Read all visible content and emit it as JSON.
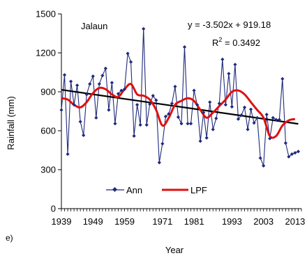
{
  "chart_data": {
    "type": "line",
    "title": "",
    "station_label": "Jalaun",
    "panel_label": "e)",
    "xlabel": "Year",
    "ylabel": "Rainfall (mm)",
    "ylim": [
      0,
      1500
    ],
    "xlim": [
      1939,
      2015
    ],
    "y_ticks": [
      0,
      300,
      600,
      900,
      1200,
      1500
    ],
    "x_tick_labels": [
      1939,
      1949,
      1959,
      1971,
      1981,
      1993,
      2003,
      2013
    ],
    "legend": {
      "placement": "bottom-center",
      "entries": [
        "Ann",
        "LPF"
      ]
    },
    "equation": "y = -3.502x + 919.18",
    "r_squared_prefix": "R",
    "r_squared_exp": "2",
    "r_squared_value": " = 0.3492",
    "colors": {
      "ann": "#1f2a7a",
      "lpf": "#e01010",
      "trend": "#000000"
    },
    "series": [
      {
        "name": "Ann",
        "x": [
          1939,
          1940,
          1941,
          1942,
          1943,
          1944,
          1945,
          1946,
          1947,
          1948,
          1949,
          1950,
          1951,
          1952,
          1953,
          1954,
          1955,
          1956,
          1957,
          1958,
          1959,
          1960,
          1961,
          1962,
          1963,
          1964,
          1965,
          1966,
          1967,
          1968,
          1969,
          1970,
          1971,
          1972,
          1973,
          1974,
          1975,
          1976,
          1977,
          1978,
          1979,
          1980,
          1981,
          1982,
          1983,
          1984,
          1985,
          1986,
          1987,
          1988,
          1989,
          1990,
          1991,
          1992,
          1993,
          1994,
          1995,
          1996,
          1997,
          1998,
          1999,
          2000,
          2001,
          2002,
          2003,
          2004,
          2005,
          2006,
          2007,
          2008,
          2009,
          2010,
          2011,
          2012,
          2013,
          2014
        ],
        "values": [
          760,
          1030,
          420,
          980,
          800,
          950,
          670,
          565,
          880,
          960,
          1020,
          700,
          960,
          1025,
          1080,
          760,
          970,
          655,
          885,
          910,
          920,
          1195,
          1130,
          560,
          800,
          645,
          1385,
          645,
          805,
          870,
          835,
          355,
          500,
          710,
          730,
          810,
          940,
          705,
          655,
          1245,
          655,
          655,
          910,
          800,
          520,
          740,
          545,
          820,
          610,
          695,
          810,
          1150,
          800,
          1040,
          785,
          1110,
          690,
          720,
          780,
          610,
          765,
          660,
          700,
          390,
          330,
          725,
          540,
          700,
          685,
          685,
          1000,
          505,
          400,
          420,
          430,
          440
        ],
        "marker": "diamond"
      },
      {
        "name": "LPF",
        "x": [
          1939,
          1941,
          1943,
          1945,
          1947,
          1949,
          1951,
          1953,
          1955,
          1957,
          1959,
          1961,
          1963,
          1965,
          1967,
          1969,
          1971,
          1973,
          1975,
          1977,
          1979,
          1981,
          1983,
          1985,
          1987,
          1989,
          1991,
          1993,
          1995,
          1997,
          1999,
          2001,
          2003,
          2005,
          2007,
          2009,
          2011,
          2013
        ],
        "values": [
          850,
          840,
          800,
          780,
          820,
          890,
          930,
          920,
          880,
          860,
          920,
          960,
          880,
          870,
          840,
          760,
          640,
          700,
          800,
          830,
          850,
          830,
          760,
          700,
          740,
          790,
          840,
          900,
          910,
          880,
          820,
          760,
          700,
          560,
          560,
          640,
          680,
          690
        ]
      },
      {
        "name": "Trend",
        "x": [
          1939,
          2014
        ],
        "values": [
          915.7,
          653.0
        ]
      }
    ]
  }
}
